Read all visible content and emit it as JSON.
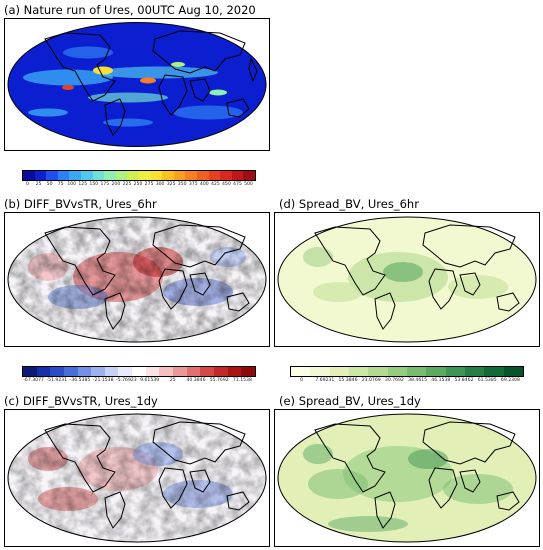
{
  "panels": {
    "a": {
      "title": "(a) Nature run of Ures, 00UTC Aug 10, 2020"
    },
    "b": {
      "title": "(b) DIFF_BVvsTR, Ures_6hr"
    },
    "c": {
      "title": "(c) DIFF_BVvsTR, Ures_1dy"
    },
    "d": {
      "title": "(d) Spread_BV, Ures_6hr"
    },
    "e": {
      "title": "(e) Spread_BV, Ures_1dy"
    }
  },
  "colorbars": {
    "nature": {
      "ticks": [
        "0",
        "25",
        "50",
        "75",
        "100",
        "125",
        "150",
        "175",
        "200",
        "225",
        "250",
        "275",
        "300",
        "325",
        "350",
        "375",
        "400",
        "425",
        "450",
        "475",
        "500"
      ],
      "colors": [
        "#0a0aa0",
        "#0b1fd0",
        "#1f4ff0",
        "#2f7ff5",
        "#3aa8f5",
        "#4fc8ef",
        "#6fe0d8",
        "#8ef0b0",
        "#b0f080",
        "#d0f050",
        "#eef040",
        "#fce030",
        "#fcc020",
        "#fba020",
        "#f88020",
        "#f06020",
        "#e84020",
        "#d82820",
        "#c01818",
        "#a00c10"
      ]
    },
    "diff": {
      "ticks": [
        "-67.3077",
        "-51.9231",
        "-36.5385",
        "-21.1538",
        "-5.76923",
        "9.61539",
        "25",
        "40.3846",
        "55.7692",
        "71.1538"
      ],
      "colors": [
        "#0a1a78",
        "#1530a8",
        "#2a4cc8",
        "#4a6ed8",
        "#7290e4",
        "#9cb2ee",
        "#c6d2f6",
        "#e8ecfa",
        "#ffffff",
        "#fae4e4",
        "#f4c0c0",
        "#ec9898",
        "#e27070",
        "#d64848",
        "#c42828",
        "#ac1414",
        "#900808"
      ]
    },
    "spread": {
      "ticks": [
        "0",
        "7.69231",
        "15.3846",
        "23.0769",
        "30.7692",
        "38.4615",
        "46.1538",
        "53.8462",
        "61.5385",
        "69.2308"
      ],
      "colors": [
        "#fcfde6",
        "#f2f8cf",
        "#e2f0b8",
        "#cce6a4",
        "#b2da90",
        "#96cc80",
        "#78bc70",
        "#5aaa62",
        "#3e9654",
        "#268046",
        "#126a38",
        "#06542c"
      ]
    }
  }
}
